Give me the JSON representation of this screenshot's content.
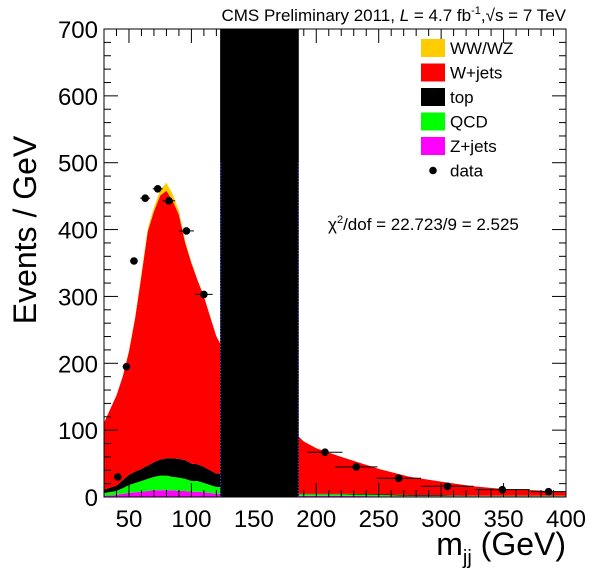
{
  "chart_data": {
    "type": "area",
    "title_parts": {
      "prefix": "CMS Preliminary 2011, ",
      "lumi_symbol": "L",
      "lumi_value": " = 4.7 fb",
      "lumi_exp": "-1",
      "sep": ",",
      "sqrt": "√",
      "energy": "s = 7 TeV"
    },
    "xlabel_main": "m",
    "xlabel_sub": "jj",
    "xlabel_unit": " (GeV)",
    "ylabel": "Events / GeV",
    "xlim": [
      30,
      400
    ],
    "ylim": [
      0,
      700
    ],
    "xticks": [
      50,
      100,
      150,
      200,
      250,
      300,
      350,
      400
    ],
    "yticks": [
      0,
      100,
      200,
      300,
      400,
      500,
      600,
      700
    ],
    "blinded_region": [
      123,
      186
    ],
    "legend_position": "top-right",
    "legend": [
      {
        "label": "WW/WZ",
        "color": "#ffcc00",
        "marker": "box"
      },
      {
        "label": "W+jets",
        "color": "#ff0000",
        "marker": "box"
      },
      {
        "label": "top",
        "color": "#000000",
        "marker": "box"
      },
      {
        "label": "QCD",
        "color": "#00ff00",
        "marker": "box"
      },
      {
        "label": "Z+jets",
        "color": "#ff00ff",
        "marker": "box"
      },
      {
        "label": "data",
        "color": "#000000",
        "marker": "dot"
      }
    ],
    "annotation": {
      "chi": "χ",
      "exp": "2",
      "rest": "/dof = 22.723/9 = 2.525"
    },
    "stack_x": [
      30,
      40,
      45,
      50,
      55,
      60,
      65,
      70,
      75,
      80,
      85,
      90,
      95,
      100,
      105,
      110,
      115,
      120,
      123,
      186,
      190,
      200,
      220,
      250,
      275,
      300,
      325,
      350,
      375,
      400
    ],
    "series": [
      {
        "name": "Z+jets",
        "color": "#ff00ff",
        "values": [
          2,
          3,
          5,
          6,
          7,
          8,
          9,
          10,
          10,
          10,
          10,
          9,
          9,
          8,
          8,
          7,
          6,
          5,
          5,
          2,
          2,
          2,
          2,
          1,
          1,
          1,
          1,
          1,
          1,
          1
        ]
      },
      {
        "name": "QCD",
        "color": "#00ff00",
        "values": [
          4,
          6,
          8,
          12,
          14,
          16,
          18,
          20,
          22,
          22,
          20,
          20,
          18,
          16,
          16,
          14,
          12,
          10,
          10,
          2,
          2,
          2,
          2,
          2,
          1,
          1,
          1,
          1,
          1,
          1
        ]
      },
      {
        "name": "top",
        "color": "#000000",
        "values": [
          5,
          8,
          12,
          15,
          17,
          18,
          20,
          22,
          24,
          26,
          28,
          28,
          28,
          26,
          25,
          24,
          22,
          20,
          20,
          1,
          1,
          1,
          1,
          1,
          1,
          1,
          0,
          0,
          0,
          0
        ]
      },
      {
        "name": "W+jets",
        "color": "#ff0000",
        "values": [
          100,
          135,
          155,
          185,
          230,
          290,
          350,
          375,
          395,
          400,
          385,
          365,
          325,
          300,
          275,
          255,
          230,
          205,
          195,
          85,
          78,
          68,
          55,
          38,
          27,
          20,
          14,
          10,
          8,
          5
        ]
      },
      {
        "name": "WW/WZ",
        "color": "#ffcc00",
        "values": [
          0,
          0,
          0,
          1,
          2,
          3,
          4,
          6,
          8,
          12,
          10,
          6,
          3,
          1,
          0,
          0,
          0,
          0,
          0,
          0,
          0,
          0,
          0,
          0,
          0,
          0,
          0,
          0,
          0,
          0
        ]
      }
    ],
    "data_points": [
      {
        "x": 41,
        "y": 30,
        "xerr": 2
      },
      {
        "x": 48,
        "y": 195,
        "xerr": 3
      },
      {
        "x": 54,
        "y": 353,
        "xerr": 3
      },
      {
        "x": 63,
        "y": 447,
        "xerr": 4
      },
      {
        "x": 73,
        "y": 461,
        "xerr": 4
      },
      {
        "x": 82,
        "y": 443,
        "xerr": 5
      },
      {
        "x": 96,
        "y": 398,
        "xerr": 6
      },
      {
        "x": 110,
        "y": 303,
        "xerr": 7
      },
      {
        "x": 207,
        "y": 67,
        "xerr": 14
      },
      {
        "x": 232,
        "y": 45,
        "xerr": 17
      },
      {
        "x": 266,
        "y": 28,
        "xerr": 18
      },
      {
        "x": 305,
        "y": 16,
        "xerr": 21
      },
      {
        "x": 349,
        "y": 11,
        "xerr": 22
      },
      {
        "x": 386,
        "y": 8,
        "xerr": 14
      }
    ]
  }
}
